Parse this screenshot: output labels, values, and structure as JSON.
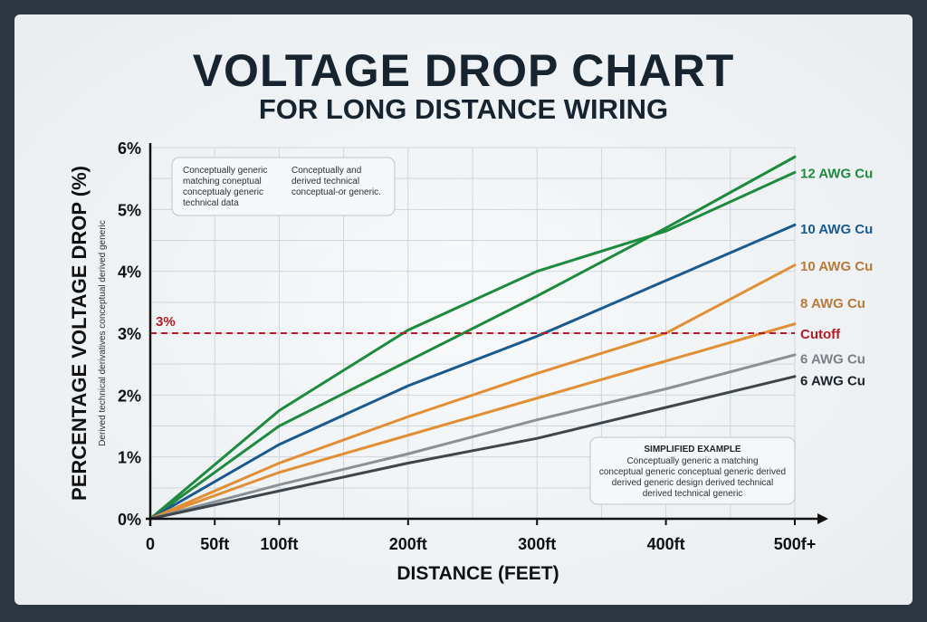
{
  "title": "VOLTAGE DROP CHART",
  "subtitle": "FOR LONG DISTANCE WIRING",
  "chart_data": {
    "type": "line",
    "title": "VOLTAGE DROP CHART",
    "subtitle": "FOR LONG DISTANCE WIRING",
    "xlabel": "DISTANCE (FEET)",
    "ylabel": "PERCENTAGE VOLTAGE DROP (%)",
    "ylabel_sub": "Derived technical derivatives conceptual derived generic",
    "xlim": [
      0,
      500
    ],
    "ylim": [
      0,
      6
    ],
    "grid": true,
    "x_ticks": [
      {
        "v": 0,
        "label": "0"
      },
      {
        "v": 50,
        "label": "50ft"
      },
      {
        "v": 100,
        "label": "100ft"
      },
      {
        "v": 200,
        "label": "200ft"
      },
      {
        "v": 300,
        "label": "300ft"
      },
      {
        "v": 400,
        "label": "400ft"
      },
      {
        "v": 500,
        "label": "500f+"
      }
    ],
    "y_ticks": [
      {
        "v": 0,
        "label": "0%"
      },
      {
        "v": 1,
        "label": "1%"
      },
      {
        "v": 2,
        "label": "2%"
      },
      {
        "v": 3,
        "label": "3%"
      },
      {
        "v": 4,
        "label": "4%"
      },
      {
        "v": 5,
        "label": "5%"
      },
      {
        "v": 6,
        "label": "6%"
      }
    ],
    "x": [
      0,
      100,
      200,
      300,
      400,
      500
    ],
    "series": [
      {
        "color": "#1e8a3e",
        "values": [
          0,
          1.75,
          3.05,
          4.0,
          4.65,
          5.6
        ]
      },
      {
        "color": "#1e8a3e",
        "values": [
          0,
          1.5,
          2.55,
          3.6,
          4.7,
          5.85
        ]
      },
      {
        "color": "#1a5a8e",
        "values": [
          0,
          1.2,
          2.15,
          2.95,
          3.85,
          4.75
        ]
      },
      {
        "color": "#e08f35",
        "values": [
          0,
          0.9,
          1.65,
          2.35,
          3.0,
          4.1
        ]
      },
      {
        "color": "#e08f35",
        "values": [
          0,
          0.75,
          1.35,
          1.95,
          2.55,
          3.15
        ]
      },
      {
        "color": "#8a9196",
        "values": [
          0,
          0.55,
          1.05,
          1.6,
          2.1,
          2.65
        ]
      },
      {
        "color": "#3e454b",
        "values": [
          0,
          0.45,
          0.9,
          1.3,
          1.8,
          2.3
        ]
      }
    ],
    "cutoff": {
      "value": 3,
      "label": "3%",
      "color": "#b01e23"
    },
    "legend": [
      {
        "label": "12 AWG Cu",
        "color": "#1e8a3e",
        "at": 5.6
      },
      {
        "label": "10 AWG Cu",
        "color": "#1a5a8e",
        "at": 4.7
      },
      {
        "label": "10 AWG Cu",
        "color": "#b67a3a",
        "at": 4.1
      },
      {
        "label": "8 AWG Cu",
        "color": "#b67a3a",
        "at": 3.5
      },
      {
        "label": "Cutoff",
        "color": "#b01e23",
        "at": 3.0
      },
      {
        "label": "6 AWG Cu",
        "color": "#7a8085",
        "at": 2.6
      },
      {
        "label": "6 AWG Cu",
        "color": "#1c2328",
        "at": 2.25
      }
    ],
    "legend_placement": "right",
    "annotations": {
      "box1_col1": [
        "Conceptually generic",
        "matching coneptual",
        "conceptualy generic",
        "technical data"
      ],
      "box1_col2": [
        "Conceptually and",
        "derived technical",
        "conceptual-or generic."
      ],
      "box2_title": "SIMPLIFIED EXAMPLE",
      "box2_lines": [
        "Conceptually  generic a matching",
        "conceptual generic conceptual generic derived",
        "derived generic design derived technical",
        "derived technical generic"
      ]
    }
  }
}
